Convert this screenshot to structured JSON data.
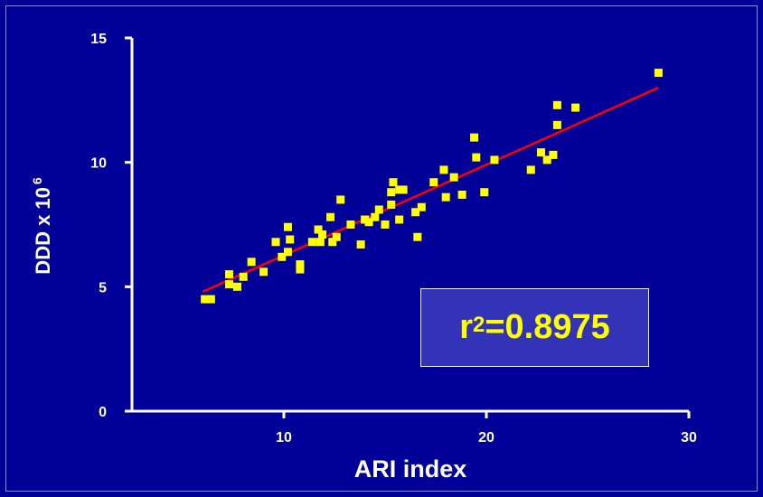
{
  "chart_data": {
    "type": "scatter",
    "xlabel": "ARI index",
    "ylabel": "DDD x 10",
    "ylabel_superscript": "6",
    "xlim": [
      2.5,
      30
    ],
    "ylim": [
      0,
      15
    ],
    "xticks": [
      10,
      20,
      30
    ],
    "yticks": [
      0,
      5,
      10,
      15
    ],
    "grid": false,
    "colors": {
      "background": "#000099",
      "points": "#ffff00",
      "fit_line": "#ff0000",
      "text": "#ffffff",
      "annotation_text": "#ffff00",
      "annotation_bg": "#3333b8"
    },
    "annotation": {
      "prefix": "r",
      "superscript": "2",
      "value": "=0.8975"
    },
    "fit_line": {
      "x": [
        6.0,
        28.5
      ],
      "y": [
        4.8,
        13.0
      ]
    },
    "points": [
      [
        6.1,
        4.5
      ],
      [
        6.4,
        4.5
      ],
      [
        7.3,
        5.5
      ],
      [
        7.3,
        5.1
      ],
      [
        7.7,
        5.0
      ],
      [
        8.0,
        5.4
      ],
      [
        8.4,
        6.0
      ],
      [
        9.0,
        5.6
      ],
      [
        9.6,
        6.8
      ],
      [
        9.9,
        6.2
      ],
      [
        10.2,
        6.4
      ],
      [
        10.2,
        7.4
      ],
      [
        10.3,
        6.9
      ],
      [
        10.8,
        5.7
      ],
      [
        10.8,
        5.9
      ],
      [
        11.4,
        6.8
      ],
      [
        11.7,
        7.3
      ],
      [
        11.8,
        6.8
      ],
      [
        11.9,
        7.1
      ],
      [
        12.3,
        7.8
      ],
      [
        12.4,
        6.8
      ],
      [
        12.6,
        7.0
      ],
      [
        12.8,
        8.5
      ],
      [
        13.3,
        7.5
      ],
      [
        13.8,
        6.7
      ],
      [
        14.0,
        7.7
      ],
      [
        14.2,
        7.6
      ],
      [
        14.5,
        7.8
      ],
      [
        14.7,
        8.1
      ],
      [
        15.0,
        7.5
      ],
      [
        15.3,
        8.3
      ],
      [
        15.3,
        8.8
      ],
      [
        15.4,
        9.2
      ],
      [
        15.7,
        8.9
      ],
      [
        15.7,
        7.7
      ],
      [
        15.9,
        8.9
      ],
      [
        16.5,
        8.0
      ],
      [
        16.6,
        7.0
      ],
      [
        16.8,
        8.2
      ],
      [
        17.4,
        9.2
      ],
      [
        17.9,
        9.7
      ],
      [
        18.0,
        8.6
      ],
      [
        18.4,
        9.4
      ],
      [
        18.8,
        8.7
      ],
      [
        19.4,
        11.0
      ],
      [
        19.5,
        10.2
      ],
      [
        19.9,
        8.8
      ],
      [
        20.4,
        10.1
      ],
      [
        22.2,
        9.7
      ],
      [
        22.7,
        10.4
      ],
      [
        23.0,
        10.1
      ],
      [
        23.3,
        10.3
      ],
      [
        23.5,
        12.3
      ],
      [
        23.5,
        11.5
      ],
      [
        24.4,
        12.2
      ],
      [
        28.5,
        13.6
      ]
    ]
  }
}
